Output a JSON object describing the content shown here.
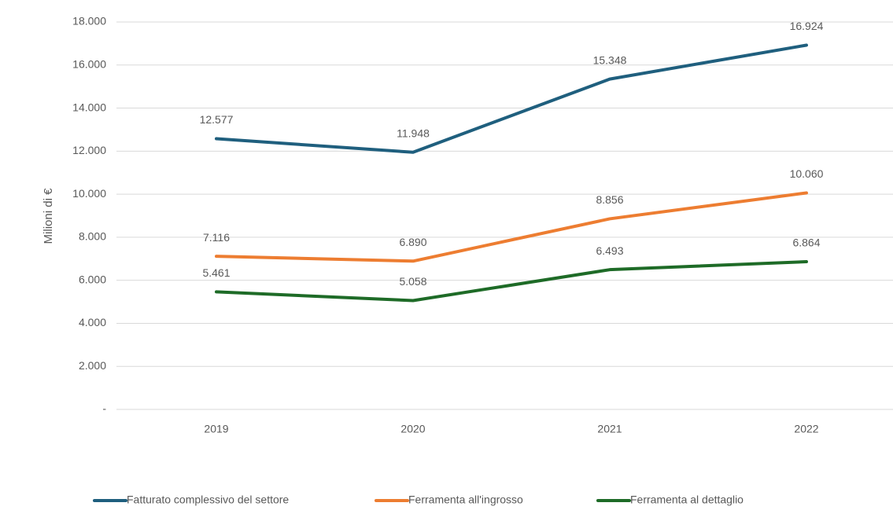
{
  "chart_data": {
    "type": "line",
    "y_label": "Milioni di €",
    "categories": [
      "2019",
      "2020",
      "2021",
      "2022"
    ],
    "series": [
      {
        "name": "Fatturato complessivo del settore",
        "color": "#1f5f7e",
        "values": [
          12577,
          11948,
          15348,
          16924
        ],
        "value_labels": [
          "12.577",
          "11.948",
          "15.348",
          "16.924"
        ]
      },
      {
        "name": "Ferramenta all'ingrosso",
        "color": "#ed7d31",
        "values": [
          7116,
          6890,
          8856,
          10060
        ],
        "value_labels": [
          "7.116",
          "6.890",
          "8.856",
          "10.060"
        ]
      },
      {
        "name": "Ferramenta al dettaglio",
        "color": "#1e6b27",
        "values": [
          5461,
          5058,
          6493,
          6864
        ],
        "value_labels": [
          "5.461",
          "5.058",
          "6.493",
          "6.864"
        ]
      }
    ],
    "ylim": [
      0,
      18000
    ],
    "yticks": [
      {
        "value": 0,
        "label": "-"
      },
      {
        "value": 2000,
        "label": "2.000"
      },
      {
        "value": 4000,
        "label": "4.000"
      },
      {
        "value": 6000,
        "label": "6.000"
      },
      {
        "value": 8000,
        "label": "8.000"
      },
      {
        "value": 10000,
        "label": "10.000"
      },
      {
        "value": 12000,
        "label": "12.000"
      },
      {
        "value": 14000,
        "label": "14.000"
      },
      {
        "value": 16000,
        "label": "16.000"
      },
      {
        "value": 18000,
        "label": "18.000"
      }
    ],
    "grid": true,
    "legend": "bottom"
  }
}
